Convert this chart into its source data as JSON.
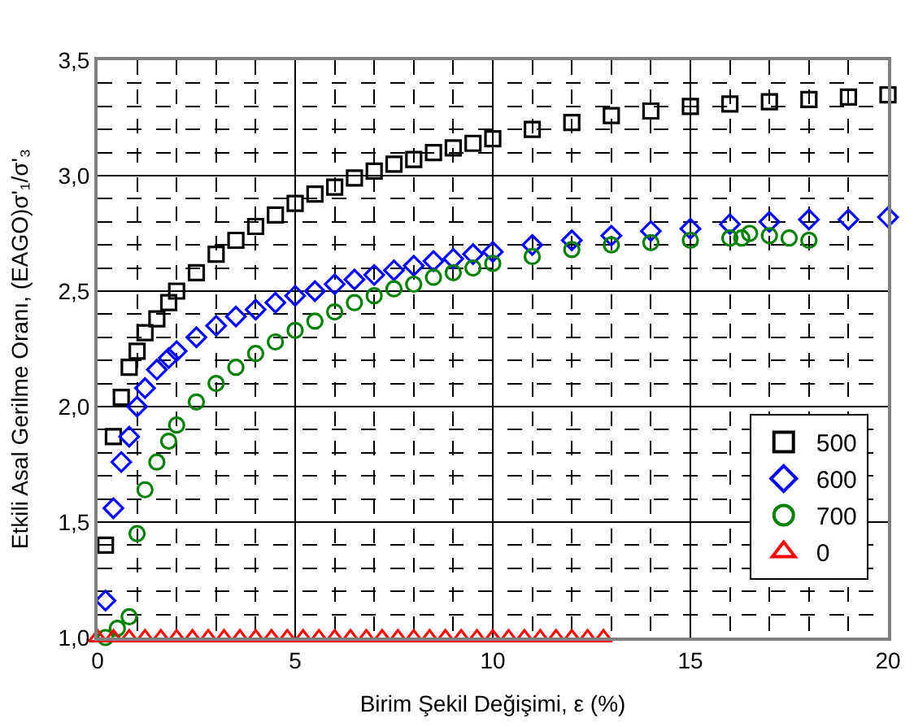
{
  "chart_data": {
    "type": "scatter",
    "xlabel": "Birim Şekil Değişimi, ε (%)",
    "ylabel": "Etkili Asal Gerilme Oranı, (EAGO)σ'₁/σ'₃",
    "xlim": [
      0,
      20
    ],
    "ylim": [
      1.0,
      3.5
    ],
    "xticks": [
      0,
      {
        "value": 1,
        "label": null
      },
      {
        "value": 2,
        "label": null
      },
      {
        "value": 3,
        "label": null
      },
      {
        "value": 4,
        "label": null
      },
      5,
      {
        "value": 6,
        "label": null
      },
      {
        "value": 7,
        "label": null
      },
      {
        "value": 8,
        "label": null
      },
      {
        "value": 9,
        "label": null
      },
      10,
      {
        "value": 11,
        "label": null
      },
      {
        "value": 12,
        "label": null
      },
      {
        "value": 13,
        "label": null
      },
      {
        "value": 14,
        "label": null
      },
      15,
      {
        "value": 16,
        "label": null
      },
      {
        "value": 17,
        "label": null
      },
      {
        "value": 18,
        "label": null
      },
      {
        "value": 19,
        "label": null
      },
      20
    ],
    "yticks": [
      {
        "value": 1.0,
        "label": "1,0"
      },
      {
        "value": 1.1,
        "label": null
      },
      {
        "value": 1.2,
        "label": null
      },
      {
        "value": 1.3,
        "label": null
      },
      {
        "value": 1.4,
        "label": null
      },
      {
        "value": 1.5,
        "label": "1,5"
      },
      {
        "value": 1.6,
        "label": null
      },
      {
        "value": 1.7,
        "label": null
      },
      {
        "value": 1.8,
        "label": null
      },
      {
        "value": 1.9,
        "label": null
      },
      {
        "value": 2.0,
        "label": "2,0"
      },
      {
        "value": 2.1,
        "label": null
      },
      {
        "value": 2.2,
        "label": null
      },
      {
        "value": 2.3,
        "label": null
      },
      {
        "value": 2.4,
        "label": null
      },
      {
        "value": 2.5,
        "label": "2,5"
      },
      {
        "value": 2.6,
        "label": null
      },
      {
        "value": 2.7,
        "label": null
      },
      {
        "value": 2.8,
        "label": null
      },
      {
        "value": 2.9,
        "label": null
      },
      {
        "value": 3.0,
        "label": "3,0"
      },
      {
        "value": 3.1,
        "label": null
      },
      {
        "value": 3.2,
        "label": null
      },
      {
        "value": 3.3,
        "label": null
      },
      {
        "value": 3.4,
        "label": null
      },
      {
        "value": 3.5,
        "label": "3,5"
      }
    ],
    "grid": true,
    "legend": "right",
    "series": [
      {
        "name": "500",
        "color": "#000000",
        "marker": "square",
        "x": [
          0.2,
          0.4,
          0.6,
          0.8,
          1.0,
          1.2,
          1.5,
          1.8,
          2.0,
          2.5,
          3.0,
          3.5,
          4.0,
          4.5,
          5.0,
          5.5,
          6.0,
          6.5,
          7.0,
          7.5,
          8.0,
          8.5,
          9.0,
          9.5,
          10.0,
          11.0,
          12.0,
          13.0,
          14.0,
          15.0,
          16.0,
          17.0,
          18.0,
          19.0,
          20.0
        ],
        "values": [
          1.4,
          1.87,
          2.04,
          2.17,
          2.24,
          2.32,
          2.38,
          2.45,
          2.5,
          2.58,
          2.66,
          2.72,
          2.78,
          2.83,
          2.88,
          2.92,
          2.95,
          2.99,
          3.02,
          3.05,
          3.07,
          3.1,
          3.12,
          3.14,
          3.16,
          3.2,
          3.23,
          3.26,
          3.28,
          3.3,
          3.31,
          3.32,
          3.33,
          3.34,
          3.35
        ]
      },
      {
        "name": "600",
        "color": "#0000ff",
        "marker": "diamond",
        "x": [
          0.2,
          0.4,
          0.6,
          0.8,
          1.0,
          1.2,
          1.5,
          1.8,
          2.0,
          2.5,
          3.0,
          3.5,
          4.0,
          4.5,
          5.0,
          5.5,
          6.0,
          6.5,
          7.0,
          7.5,
          8.0,
          8.5,
          9.0,
          9.5,
          10.0,
          11.0,
          12.0,
          13.0,
          14.0,
          15.0,
          16.0,
          17.0,
          18.0,
          19.0,
          20.0
        ],
        "values": [
          1.16,
          1.56,
          1.76,
          1.87,
          2.0,
          2.08,
          2.16,
          2.21,
          2.24,
          2.3,
          2.35,
          2.39,
          2.42,
          2.45,
          2.48,
          2.5,
          2.53,
          2.55,
          2.57,
          2.59,
          2.61,
          2.63,
          2.64,
          2.66,
          2.67,
          2.7,
          2.72,
          2.74,
          2.76,
          2.77,
          2.79,
          2.8,
          2.81,
          2.81,
          2.82
        ]
      },
      {
        "name": "700",
        "color": "#008000",
        "marker": "circle",
        "x": [
          0.2,
          0.5,
          0.8,
          1.0,
          1.2,
          1.5,
          1.8,
          2.0,
          2.5,
          3.0,
          3.5,
          4.0,
          4.5,
          5.0,
          5.5,
          6.0,
          6.5,
          7.0,
          7.5,
          8.0,
          8.5,
          9.0,
          9.5,
          10.0,
          11.0,
          12.0,
          13.0,
          14.0,
          15.0,
          16.0,
          16.3,
          16.5,
          17.0,
          17.5,
          18.0
        ],
        "values": [
          1.0,
          1.04,
          1.09,
          1.45,
          1.64,
          1.76,
          1.85,
          1.92,
          2.02,
          2.1,
          2.17,
          2.23,
          2.28,
          2.33,
          2.37,
          2.41,
          2.45,
          2.48,
          2.51,
          2.53,
          2.56,
          2.58,
          2.6,
          2.62,
          2.65,
          2.68,
          2.7,
          2.71,
          2.72,
          2.73,
          2.73,
          2.75,
          2.74,
          2.73,
          2.72
        ]
      },
      {
        "name": "0",
        "color": "#ff0000",
        "marker": "triangle",
        "x": [
          0.0,
          0.4,
          0.8,
          1.2,
          1.6,
          2.0,
          2.4,
          2.8,
          3.2,
          3.6,
          4.0,
          4.4,
          4.8,
          5.2,
          5.6,
          6.0,
          6.4,
          6.8,
          7.2,
          7.6,
          8.0,
          8.4,
          8.8,
          9.2,
          9.6,
          10.0,
          10.4,
          10.8,
          11.2,
          11.6,
          12.0,
          12.4,
          12.8
        ],
        "values": [
          1.0,
          1.0,
          1.0,
          1.0,
          1.0,
          1.0,
          1.0,
          1.0,
          1.0,
          1.0,
          1.0,
          1.0,
          1.0,
          1.0,
          1.0,
          1.0,
          1.0,
          1.0,
          1.0,
          1.0,
          1.0,
          1.0,
          1.0,
          1.0,
          1.0,
          1.0,
          1.0,
          1.0,
          1.0,
          1.0,
          1.0,
          1.0,
          1.0
        ]
      }
    ]
  }
}
